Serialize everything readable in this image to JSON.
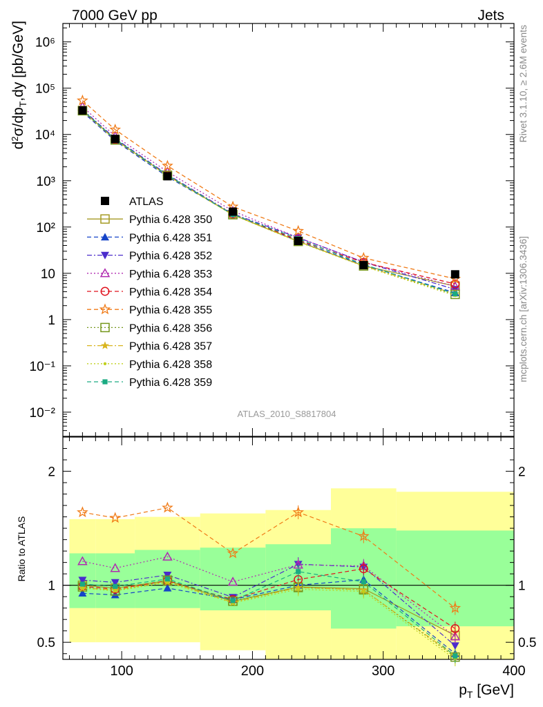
{
  "header": {
    "process": "7000 GeV pp",
    "observable": "Jets",
    "analysis": "ATLAS_2010_S8817804",
    "side_top": "Rivet 3.1.10, ≥ 2.6M events",
    "side_bottom": "mcplots.cern.ch [arXiv:1306.3436]"
  },
  "chart_data": [
    {
      "type": "scatter",
      "panel": "main",
      "ylabel": "d²σ/dp_T,dy [pb/GeV]",
      "yscale": "log",
      "ylim": [
        0.003,
        2500000
      ],
      "xlim": [
        55,
        400
      ],
      "ytick_labels": [
        "10⁻²",
        "10⁻¹",
        "1",
        "10",
        "10²",
        "10³",
        "10⁴",
        "10⁵",
        "10⁶"
      ],
      "x": [
        70,
        95,
        135,
        185,
        235,
        285,
        355
      ],
      "series": [
        {
          "name": "ATLAS",
          "color": "#000000",
          "marker": "square-filled",
          "values": [
            33000,
            8000,
            1250,
            215,
            50,
            15,
            9.5
          ]
        },
        {
          "name": "Pythia 6.428 350",
          "color": "#a49a22",
          "marker": "square-open",
          "line": "solid",
          "values": [
            33000,
            7800,
            1300,
            185,
            49,
            14.5,
            5.3
          ]
        },
        {
          "name": "Pythia 6.428 351",
          "color": "#1544c8",
          "marker": "triangle-up-filled",
          "line": "dashed",
          "values": [
            30800,
            7300,
            1220,
            188,
            50,
            15.1,
            3.8
          ]
        },
        {
          "name": "Pythia 6.428 352",
          "color": "#4a2ccc",
          "marker": "triangle-down-filled",
          "line": "dashdot",
          "values": [
            34500,
            8200,
            1360,
            193,
            59,
            17.5,
            4.5
          ]
        },
        {
          "name": "Pythia 6.428 353",
          "color": "#b02ab0",
          "marker": "triangle-up-open",
          "line": "dotted",
          "values": [
            40000,
            9200,
            1560,
            221,
            59,
            17.6,
            5.2
          ]
        },
        {
          "name": "Pythia 6.428 354",
          "color": "#e0101c",
          "marker": "circle-open",
          "line": "dashed",
          "values": [
            32800,
            7700,
            1300,
            188,
            52,
            17.2,
            5.9
          ]
        },
        {
          "name": "Pythia 6.428 355",
          "color": "#f07a16",
          "marker": "star-open",
          "line": "dashed",
          "values": [
            54000,
            12700,
            2100,
            275,
            82,
            21.5,
            7.6
          ]
        },
        {
          "name": "Pythia 6.428 356",
          "color": "#74961a",
          "marker": "square-open",
          "line": "dotted",
          "values": [
            32500,
            7600,
            1310,
            185,
            49,
            14.4,
            3.5
          ]
        },
        {
          "name": "Pythia 6.428 357",
          "color": "#d8b41c",
          "marker": "star-small",
          "line": "dashdot",
          "values": [
            32300,
            7700,
            1290,
            183,
            49,
            14.4,
            3.6
          ]
        },
        {
          "name": "Pythia 6.428 358",
          "color": "#c0d01c",
          "marker": "dot",
          "line": "dotted",
          "values": [
            32200,
            7600,
            1280,
            182,
            48,
            14.2,
            3.3
          ]
        },
        {
          "name": "Pythia 6.428 359",
          "color": "#1aab82",
          "marker": "square-small-filled",
          "line": "dashed",
          "values": [
            33500,
            7900,
            1320,
            186,
            56,
            15.5,
            3.6
          ]
        }
      ]
    },
    {
      "type": "scatter",
      "panel": "ratio",
      "xlabel": "p_T [GeV]",
      "ylabel": "Ratio to ATLAS",
      "xlim": [
        55,
        400
      ],
      "ylim": [
        0.35,
        2.3
      ],
      "xtick_labels": [
        "100",
        "200",
        "300",
        "400"
      ],
      "ytick_labels": [
        "0.5",
        "1",
        "2"
      ],
      "x": [
        70,
        95,
        135,
        185,
        235,
        285,
        355
      ],
      "bins": [
        [
          60,
          80
        ],
        [
          80,
          110
        ],
        [
          110,
          160
        ],
        [
          160,
          210
        ],
        [
          210,
          260
        ],
        [
          260,
          310
        ],
        [
          310,
          400
        ]
      ],
      "band_yellow": [
        [
          0.5,
          1.58
        ],
        [
          0.5,
          1.58
        ],
        [
          0.5,
          1.6
        ],
        [
          0.43,
          1.63
        ],
        [
          0.35,
          1.66
        ],
        [
          0.35,
          1.85
        ],
        [
          0.35,
          1.82
        ]
      ],
      "band_green": [
        [
          0.8,
          1.28
        ],
        [
          0.8,
          1.28
        ],
        [
          0.8,
          1.31
        ],
        [
          0.78,
          1.33
        ],
        [
          0.78,
          1.36
        ],
        [
          0.62,
          1.5
        ],
        [
          0.64,
          1.48
        ]
      ],
      "series": [
        {
          "name": "Pythia 6.428 350",
          "values": [
            1.0,
            0.975,
            1.04,
            0.86,
            0.985,
            0.97,
            0.56
          ]
        },
        {
          "name": "Pythia 6.428 351",
          "values": [
            0.93,
            0.915,
            0.975,
            0.875,
            1.0,
            1.05,
            0.4
          ]
        },
        {
          "name": "Pythia 6.428 352",
          "values": [
            1.045,
            1.025,
            1.09,
            0.895,
            1.185,
            1.16,
            0.47
          ]
        },
        {
          "name": "Pythia 6.428 353",
          "values": [
            1.21,
            1.15,
            1.25,
            1.03,
            1.18,
            1.17,
            0.55
          ]
        },
        {
          "name": "Pythia 6.428 354",
          "values": [
            0.99,
            0.965,
            1.04,
            0.875,
            1.05,
            1.145,
            0.62
          ]
        },
        {
          "name": "Pythia 6.428 355",
          "values": [
            1.64,
            1.59,
            1.68,
            1.28,
            1.64,
            1.43,
            0.8
          ]
        },
        {
          "name": "Pythia 6.428 356",
          "values": [
            0.985,
            0.95,
            1.045,
            0.86,
            0.98,
            0.96,
            0.37
          ]
        },
        {
          "name": "Pythia 6.428 357",
          "values": [
            0.975,
            0.96,
            1.03,
            0.85,
            0.98,
            0.96,
            0.38
          ]
        },
        {
          "name": "Pythia 6.428 358",
          "values": [
            0.975,
            0.95,
            1.025,
            0.845,
            0.965,
            0.945,
            0.35
          ]
        },
        {
          "name": "Pythia 6.428 359",
          "values": [
            1.01,
            0.99,
            1.055,
            0.865,
            1.12,
            1.03,
            0.38
          ]
        }
      ]
    }
  ]
}
